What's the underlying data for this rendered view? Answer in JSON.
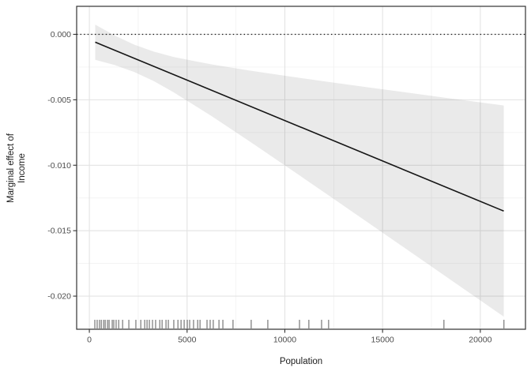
{
  "chart_data": {
    "type": "line",
    "title": "",
    "xlabel": "Population",
    "ylabel_line1": "Marginal effect of",
    "ylabel_line2": "Income",
    "xlim": [
      -650,
      22310
    ],
    "ylim": [
      -0.02253,
      0.00214
    ],
    "x_ticks": [
      0,
      5000,
      10000,
      15000,
      20000
    ],
    "x_tick_labels": [
      "0",
      "5000",
      "10000",
      "15000",
      "20000"
    ],
    "y_ticks": [
      0,
      -0.005,
      -0.01,
      -0.015,
      -0.02
    ],
    "y_tick_labels": [
      "0.000",
      "-0.005",
      "-0.010",
      "-0.015",
      "-0.020"
    ],
    "x_minor_ticks": [
      2500,
      7500,
      12500,
      17500
    ],
    "y_minor_ticks": [
      -0.0025,
      -0.0075,
      -0.0125,
      -0.0175,
      -0.0225
    ],
    "grid": true,
    "legend": false,
    "reference_line": {
      "y": 0,
      "style": "dotted"
    },
    "series": [
      {
        "name": "marginal-effect-of-income",
        "x": [
          300,
          21200
        ],
        "y": [
          -0.0006,
          -0.0135
        ]
      }
    ],
    "ribbon": {
      "name": "confidence-interval",
      "x": [
        300,
        1300,
        2300,
        3300,
        4300,
        6300,
        8300,
        10300,
        12300,
        14300,
        16300,
        18300,
        21200
      ],
      "upper": [
        0.000745,
        -8.9e-05,
        -0.000789,
        -0.001324,
        -0.001724,
        -0.002314,
        -0.002792,
        -0.003229,
        -0.003649,
        -0.004057,
        -0.004461,
        -0.00486,
        -0.005435
      ],
      "lower": [
        -0.001945,
        -0.002345,
        -0.002879,
        -0.00358,
        -0.004414,
        -0.006292,
        -0.008284,
        -0.010315,
        -0.012365,
        -0.014425,
        -0.016491,
        -0.01856,
        -0.021565
      ]
    },
    "rug_x": [
      280,
      400,
      520,
      610,
      730,
      810,
      930,
      1010,
      1170,
      1250,
      1370,
      1500,
      1700,
      2020,
      2380,
      2630,
      2830,
      2950,
      3070,
      3230,
      3390,
      3600,
      3720,
      3920,
      4040,
      4320,
      4530,
      4690,
      4850,
      5010,
      5130,
      5330,
      5540,
      5660,
      6020,
      6180,
      6340,
      6630,
      6830,
      7350,
      8280,
      9130,
      10750,
      11230,
      11880,
      12240,
      18140,
      21210
    ],
    "colors": {
      "background": "#ffffff",
      "panel_border": "#333333",
      "grid_major": "#e3e3e3",
      "grid_minor": "#efefef",
      "ribbon_fill": "rgba(90,90,90,0.13)",
      "line": "#161616",
      "reference_line": "#141414",
      "rug": "rgba(45,45,45,0.78)",
      "tick": "#333333",
      "tick_label": "#4d4d4d",
      "axis_title": "#1a1a1a"
    }
  }
}
